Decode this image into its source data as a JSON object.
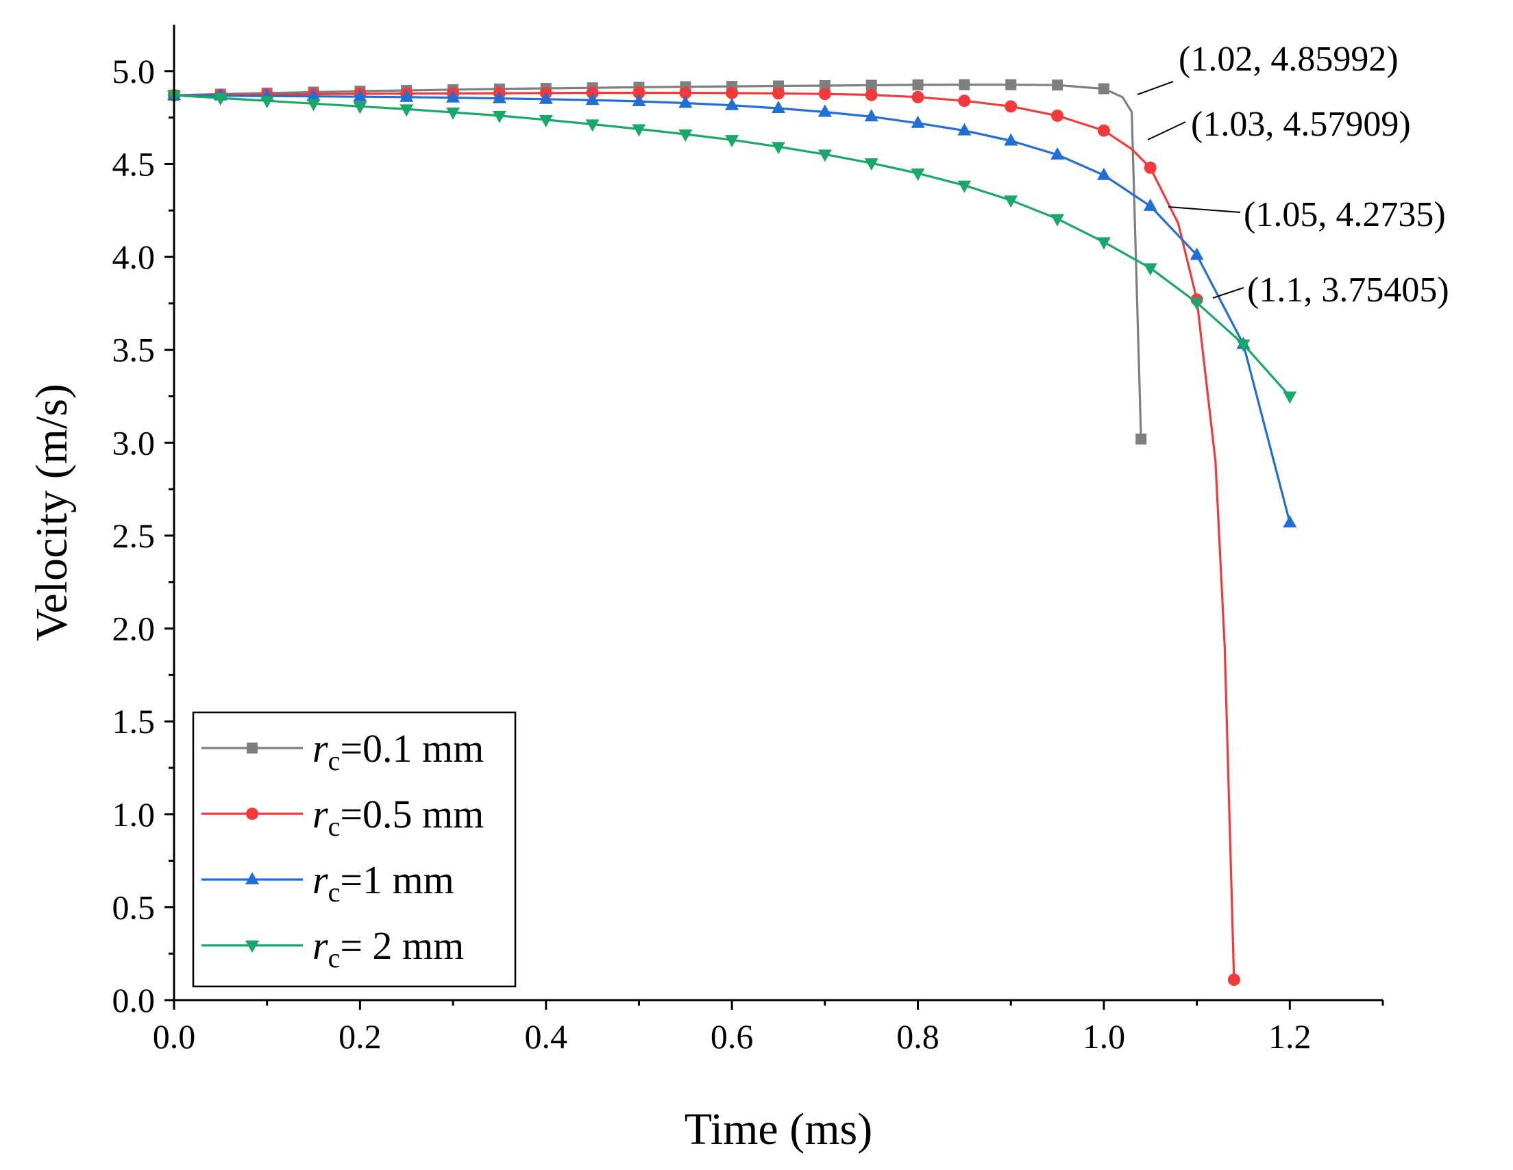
{
  "chart_data": {
    "type": "line",
    "title": "",
    "xlabel": "Time (ms)",
    "ylabel": "Velocity (m/s)",
    "xlim": [
      0,
      1.3
    ],
    "ylim": [
      0,
      5.25
    ],
    "xticks": [
      0.0,
      0.2,
      0.4,
      0.6,
      0.8,
      1.0,
      1.2
    ],
    "yticks": [
      0.0,
      0.5,
      1.0,
      1.5,
      2.0,
      2.5,
      3.0,
      3.5,
      4.0,
      4.5,
      5.0
    ],
    "xtick_labels": [
      "0.0",
      "0.2",
      "0.4",
      "0.6",
      "0.8",
      "1.0",
      "1.2"
    ],
    "ytick_labels": [
      "0.0",
      "0.5",
      "1.0",
      "1.5",
      "2.0",
      "2.5",
      "3.0",
      "3.5",
      "4.0",
      "4.5",
      "5.0"
    ],
    "grid": false,
    "legend_position": "bottom-left",
    "series": [
      {
        "name": "rc=0.1 mm",
        "legend_var": "r",
        "legend_sub": "c",
        "legend_rest": "=0.1 mm",
        "color": "#7f7f7f",
        "marker": "square",
        "x": [
          0,
          0.05,
          0.1,
          0.15,
          0.2,
          0.25,
          0.3,
          0.35,
          0.4,
          0.45,
          0.5,
          0.55,
          0.6,
          0.65,
          0.7,
          0.75,
          0.8,
          0.85,
          0.9,
          0.95,
          1.0,
          1.02,
          1.03,
          1.04
        ],
        "y": [
          4.87,
          4.876,
          4.882,
          4.887,
          4.892,
          4.896,
          4.9,
          4.904,
          4.907,
          4.91,
          4.913,
          4.916,
          4.918,
          4.92,
          4.922,
          4.924,
          4.926,
          4.927,
          4.927,
          4.925,
          4.905,
          4.86,
          4.78,
          3.02
        ],
        "marker_x": [
          0,
          0.05,
          0.1,
          0.15,
          0.2,
          0.25,
          0.3,
          0.35,
          0.4,
          0.45,
          0.5,
          0.55,
          0.6,
          0.65,
          0.7,
          0.75,
          0.8,
          0.85,
          0.9,
          0.95,
          1.0,
          1.04
        ],
        "marker_y": [
          4.87,
          4.876,
          4.882,
          4.887,
          4.892,
          4.896,
          4.9,
          4.904,
          4.907,
          4.91,
          4.913,
          4.916,
          4.918,
          4.92,
          4.922,
          4.924,
          4.926,
          4.927,
          4.927,
          4.925,
          4.905,
          3.02
        ]
      },
      {
        "name": "rc=0.5 mm",
        "legend_var": "r",
        "legend_sub": "c",
        "legend_rest": "=0.5 mm",
        "color": "#f23a3a",
        "marker": "circle",
        "x": [
          0,
          0.05,
          0.1,
          0.15,
          0.2,
          0.25,
          0.3,
          0.35,
          0.4,
          0.45,
          0.5,
          0.55,
          0.6,
          0.65,
          0.7,
          0.75,
          0.8,
          0.85,
          0.9,
          0.95,
          1.0,
          1.03,
          1.05,
          1.08,
          1.1,
          1.12,
          1.13,
          1.14
        ],
        "y": [
          4.87,
          4.872,
          4.874,
          4.876,
          4.878,
          4.879,
          4.88,
          4.881,
          4.882,
          4.883,
          4.883,
          4.883,
          4.882,
          4.88,
          4.877,
          4.872,
          4.86,
          4.84,
          4.81,
          4.76,
          4.68,
          4.58,
          4.48,
          4.18,
          3.77,
          2.9,
          1.9,
          0.11
        ],
        "marker_x": [
          0,
          0.05,
          0.1,
          0.15,
          0.2,
          0.25,
          0.3,
          0.35,
          0.4,
          0.45,
          0.5,
          0.55,
          0.6,
          0.65,
          0.7,
          0.75,
          0.8,
          0.85,
          0.9,
          0.95,
          1.0,
          1.05,
          1.1,
          1.14
        ],
        "marker_y": [
          4.87,
          4.872,
          4.874,
          4.876,
          4.878,
          4.879,
          4.88,
          4.881,
          4.882,
          4.883,
          4.883,
          4.883,
          4.882,
          4.88,
          4.877,
          4.872,
          4.86,
          4.84,
          4.81,
          4.76,
          4.68,
          4.48,
          3.77,
          0.11
        ]
      },
      {
        "name": "rc=1 mm",
        "legend_var": "r",
        "legend_sub": "c",
        "legend_rest": "=1 mm",
        "color": "#1f6fd6",
        "marker": "triangle-up",
        "x": [
          0,
          0.05,
          0.1,
          0.15,
          0.2,
          0.25,
          0.3,
          0.35,
          0.4,
          0.45,
          0.5,
          0.55,
          0.6,
          0.65,
          0.7,
          0.75,
          0.8,
          0.85,
          0.9,
          0.95,
          1.0,
          1.05,
          1.1,
          1.15,
          1.2
        ],
        "y": [
          4.87,
          4.868,
          4.866,
          4.864,
          4.862,
          4.86,
          4.857,
          4.853,
          4.849,
          4.844,
          4.837,
          4.828,
          4.816,
          4.8,
          4.78,
          4.755,
          4.72,
          4.68,
          4.625,
          4.55,
          4.44,
          4.2735,
          4.01,
          3.53,
          2.57
        ],
        "marker_x": [
          0,
          0.05,
          0.1,
          0.15,
          0.2,
          0.25,
          0.3,
          0.35,
          0.4,
          0.45,
          0.5,
          0.55,
          0.6,
          0.65,
          0.7,
          0.75,
          0.8,
          0.85,
          0.9,
          0.95,
          1.0,
          1.05,
          1.1,
          1.15,
          1.2
        ],
        "marker_y": [
          4.87,
          4.868,
          4.866,
          4.864,
          4.862,
          4.86,
          4.857,
          4.853,
          4.849,
          4.844,
          4.837,
          4.828,
          4.816,
          4.8,
          4.78,
          4.755,
          4.72,
          4.68,
          4.625,
          4.55,
          4.44,
          4.2735,
          4.01,
          3.53,
          2.57
        ]
      },
      {
        "name": "rc= 2 mm",
        "legend_var": "r",
        "legend_sub": "c",
        "legend_rest": "= 2 mm",
        "color": "#1aa86a",
        "marker": "triangle-down",
        "x": [
          0,
          0.05,
          0.1,
          0.15,
          0.2,
          0.25,
          0.3,
          0.35,
          0.4,
          0.45,
          0.5,
          0.55,
          0.6,
          0.65,
          0.7,
          0.75,
          0.8,
          0.85,
          0.9,
          0.95,
          1.0,
          1.05,
          1.1,
          1.15,
          1.2
        ],
        "y": [
          4.87,
          4.855,
          4.84,
          4.825,
          4.81,
          4.795,
          4.778,
          4.76,
          4.738,
          4.714,
          4.688,
          4.66,
          4.63,
          4.593,
          4.552,
          4.505,
          4.45,
          4.385,
          4.305,
          4.205,
          4.08,
          3.94,
          3.754,
          3.53,
          3.25
        ],
        "marker_x": [
          0,
          0.05,
          0.1,
          0.15,
          0.2,
          0.25,
          0.3,
          0.35,
          0.4,
          0.45,
          0.5,
          0.55,
          0.6,
          0.65,
          0.7,
          0.75,
          0.8,
          0.85,
          0.9,
          0.95,
          1.0,
          1.05,
          1.1,
          1.15,
          1.2
        ],
        "marker_y": [
          4.87,
          4.855,
          4.84,
          4.825,
          4.81,
          4.795,
          4.778,
          4.76,
          4.738,
          4.714,
          4.688,
          4.66,
          4.63,
          4.593,
          4.552,
          4.505,
          4.45,
          4.385,
          4.305,
          4.205,
          4.08,
          3.94,
          3.754,
          3.53,
          3.25
        ]
      }
    ],
    "annotations": [
      {
        "text": "(1.02, 4.85992)",
        "x": 1.02,
        "y": 4.85992
      },
      {
        "text": "(1.03, 4.57909)",
        "x": 1.03,
        "y": 4.57909
      },
      {
        "text": "(1.05, 4.2735)",
        "x": 1.05,
        "y": 4.2735
      },
      {
        "text": "(1.1, 3.75405)",
        "x": 1.1,
        "y": 3.75405
      }
    ]
  }
}
